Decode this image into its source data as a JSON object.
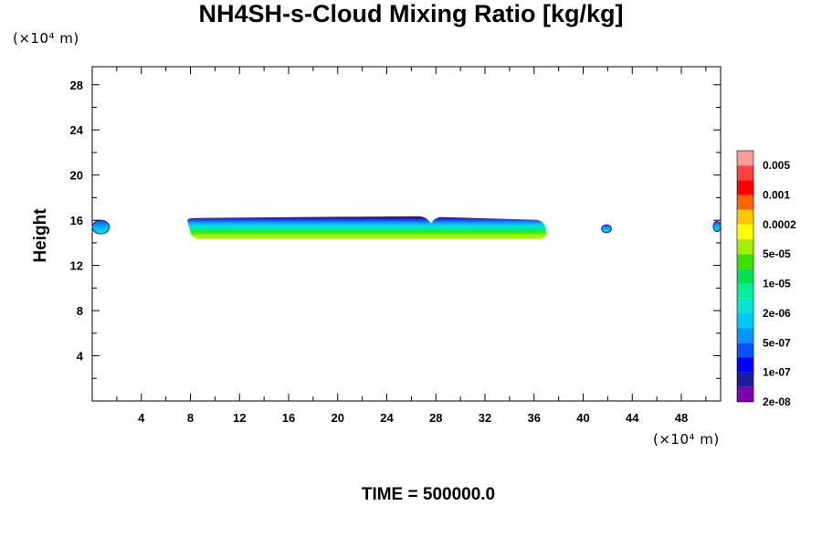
{
  "chart_data": {
    "type": "contour",
    "title": "NH4SH-s-Cloud Mixing Ratio [kg/kg]",
    "ylabel": "Height",
    "y_unit": "(×10⁴ m)",
    "x_unit": "(×10⁴ m)",
    "xlim": [
      0,
      51.2
    ],
    "ylim": [
      0,
      29.6
    ],
    "x_ticks": [
      4,
      8,
      12,
      16,
      20,
      24,
      28,
      32,
      36,
      40,
      44,
      48
    ],
    "y_ticks": [
      4,
      8,
      12,
      16,
      20,
      24,
      28
    ],
    "colorbar": {
      "labels": [
        "0.005",
        "0.001",
        "0.0002",
        "5e-05",
        "1e-05",
        "2e-06",
        "5e-07",
        "1e-07",
        "2e-08"
      ],
      "colors": [
        "#7a00b0",
        "#1c1ca0",
        "#0000ff",
        "#0a50ff",
        "#0095ff",
        "#00c8ff",
        "#00e6d2",
        "#00f09a",
        "#00e050",
        "#3ce000",
        "#a0f000",
        "#ffff00",
        "#ffc800",
        "#ff6400",
        "#ff0000",
        "#ff4040",
        "#ff9a9a"
      ]
    },
    "cloud_regions": [
      {
        "x_start": 7.6,
        "x_end": 37.0,
        "y_bottom": 14.4,
        "y_top": 16.2,
        "dip_x": 27.6
      },
      {
        "x_start": 41.5,
        "x_end": 42.3,
        "y_bottom": 14.9,
        "y_top": 15.6
      },
      {
        "x_start": 0.0,
        "x_end": 1.4,
        "y_bottom": 14.8,
        "y_top": 16.0
      },
      {
        "x_start": 50.6,
        "x_end": 51.2,
        "y_bottom": 15.0,
        "y_top": 15.9
      }
    ],
    "annotation": "TIME = 500000.0"
  }
}
